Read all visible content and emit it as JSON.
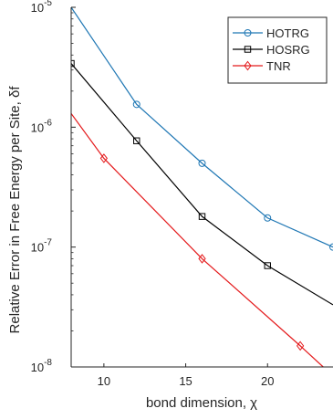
{
  "chart_data": {
    "type": "line",
    "xlabel": "bond dimension, χ",
    "ylabel": "Relative Error in Free Energy per Site, δf",
    "x_scale": "linear",
    "y_scale": "log",
    "xlim": [
      8,
      24
    ],
    "ylim": [
      1e-08,
      1e-05
    ],
    "x_ticks": [
      10,
      15,
      20
    ],
    "x_tick_labels": [
      "10",
      "15",
      "20"
    ],
    "y_ticks": [
      1e-08,
      1e-07,
      1e-06,
      1e-05
    ],
    "y_tick_labels": [
      "10",
      "10",
      "10",
      "10"
    ],
    "y_tick_exponents": [
      "-8",
      "-7",
      "-6",
      "-5"
    ],
    "grid": false,
    "legend_position": "top-right",
    "series": [
      {
        "name": "HOTRG",
        "color": "#1f77b4",
        "marker": "circle",
        "x": [
          8,
          12,
          16,
          20,
          24
        ],
        "y": [
          1e-05,
          1.55e-06,
          5e-07,
          1.75e-07,
          1e-07
        ],
        "marker_x": [
          12,
          16,
          20,
          24
        ],
        "marker_y": [
          1.55e-06,
          5e-07,
          1.75e-07,
          1e-07
        ]
      },
      {
        "name": "HOSRG",
        "color": "#000000",
        "marker": "square",
        "x": [
          8,
          12,
          16,
          20,
          24
        ],
        "y": [
          3.4e-06,
          7.7e-07,
          1.8e-07,
          7e-08,
          3.3e-08
        ],
        "marker_x": [
          8,
          12,
          16,
          20
        ],
        "marker_y": [
          3.4e-06,
          7.7e-07,
          1.8e-07,
          7e-08
        ]
      },
      {
        "name": "TNR",
        "color": "#e41a1c",
        "marker": "diamond",
        "x": [
          8,
          10,
          16,
          22,
          23.4
        ],
        "y": [
          1.3e-06,
          5.5e-07,
          8e-08,
          1.5e-08,
          1e-08
        ],
        "marker_x": [
          10,
          16,
          22
        ],
        "marker_y": [
          5.5e-07,
          8e-08,
          1.5e-08
        ]
      }
    ]
  }
}
